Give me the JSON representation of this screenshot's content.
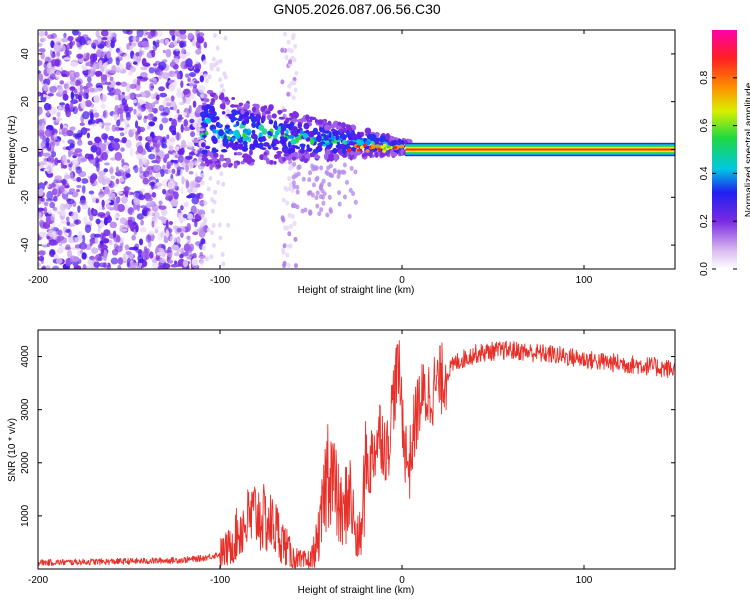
{
  "figure": {
    "title": "GN05.2026.087.06.56.C30"
  },
  "colors": {
    "spectrogram_palette": [
      "#ffffff",
      "#8a2be2",
      "#3c1cf0",
      "#00ced1",
      "#22c55e",
      "#e8f000",
      "#ff8c00",
      "#ff2020",
      "#ff00aa"
    ],
    "snr_line": "#e8302a",
    "axis": "#000000"
  },
  "chart_data": [
    {
      "type": "heatmap",
      "title": "GN05.2026.087.06.56.C30",
      "xlabel": "Height of straight line (km)",
      "ylabel": "Frequency (Hz)",
      "xlim": [
        -200,
        150
      ],
      "ylim": [
        -50,
        50
      ],
      "xticks": [
        -200,
        -100,
        0,
        100
      ],
      "yticks": [
        -40,
        -20,
        0,
        20,
        40
      ],
      "colorbar": {
        "label": "Normalized spectral amplitude",
        "range": [
          0,
          1
        ],
        "ticks": [
          0.0,
          0.2,
          0.4,
          0.6,
          0.8
        ]
      },
      "description_points": {
        "noise_region_x": [
          -200,
          -110
        ],
        "transition_x": [
          -110,
          -20
        ],
        "signal_line_frequency": 0,
        "signal_line_x": [
          5,
          150
        ]
      }
    },
    {
      "type": "line",
      "xlabel": "Height of straight line (km)",
      "ylabel": "SNR (10 * v/v)",
      "xlim": [
        -200,
        150
      ],
      "ylim": [
        0,
        4500
      ],
      "xticks": [
        -200,
        -100,
        0,
        100
      ],
      "yticks": [
        1000,
        2000,
        3000,
        4000
      ],
      "series": [
        {
          "name": "SNR",
          "x": [
            -200,
            -180,
            -160,
            -140,
            -120,
            -110,
            -100,
            -95,
            -90,
            -85,
            -80,
            -75,
            -70,
            -65,
            -60,
            -55,
            -50,
            -45,
            -42,
            -40,
            -38,
            -35,
            -32,
            -30,
            -28,
            -25,
            -22,
            -20,
            -18,
            -15,
            -12,
            -10,
            -8,
            -5,
            -2,
            0,
            2,
            4,
            6,
            8,
            10,
            15,
            20,
            25,
            30,
            40,
            50,
            60,
            70,
            80,
            90,
            100,
            110,
            120,
            130,
            140,
            150
          ],
          "values": [
            120,
            130,
            140,
            150,
            170,
            200,
            280,
            400,
            700,
            900,
            1050,
            900,
            800,
            500,
            200,
            120,
            150,
            700,
            1600,
            2100,
            1700,
            1200,
            900,
            1500,
            1300,
            500,
            700,
            2100,
            1900,
            2300,
            2600,
            2400,
            2200,
            3200,
            3800,
            3000,
            2200,
            1900,
            2500,
            2900,
            3200,
            3300,
            3500,
            3700,
            3900,
            4050,
            4100,
            4120,
            4080,
            4050,
            4000,
            3950,
            3900,
            3870,
            3840,
            3800,
            3750
          ]
        }
      ]
    }
  ]
}
